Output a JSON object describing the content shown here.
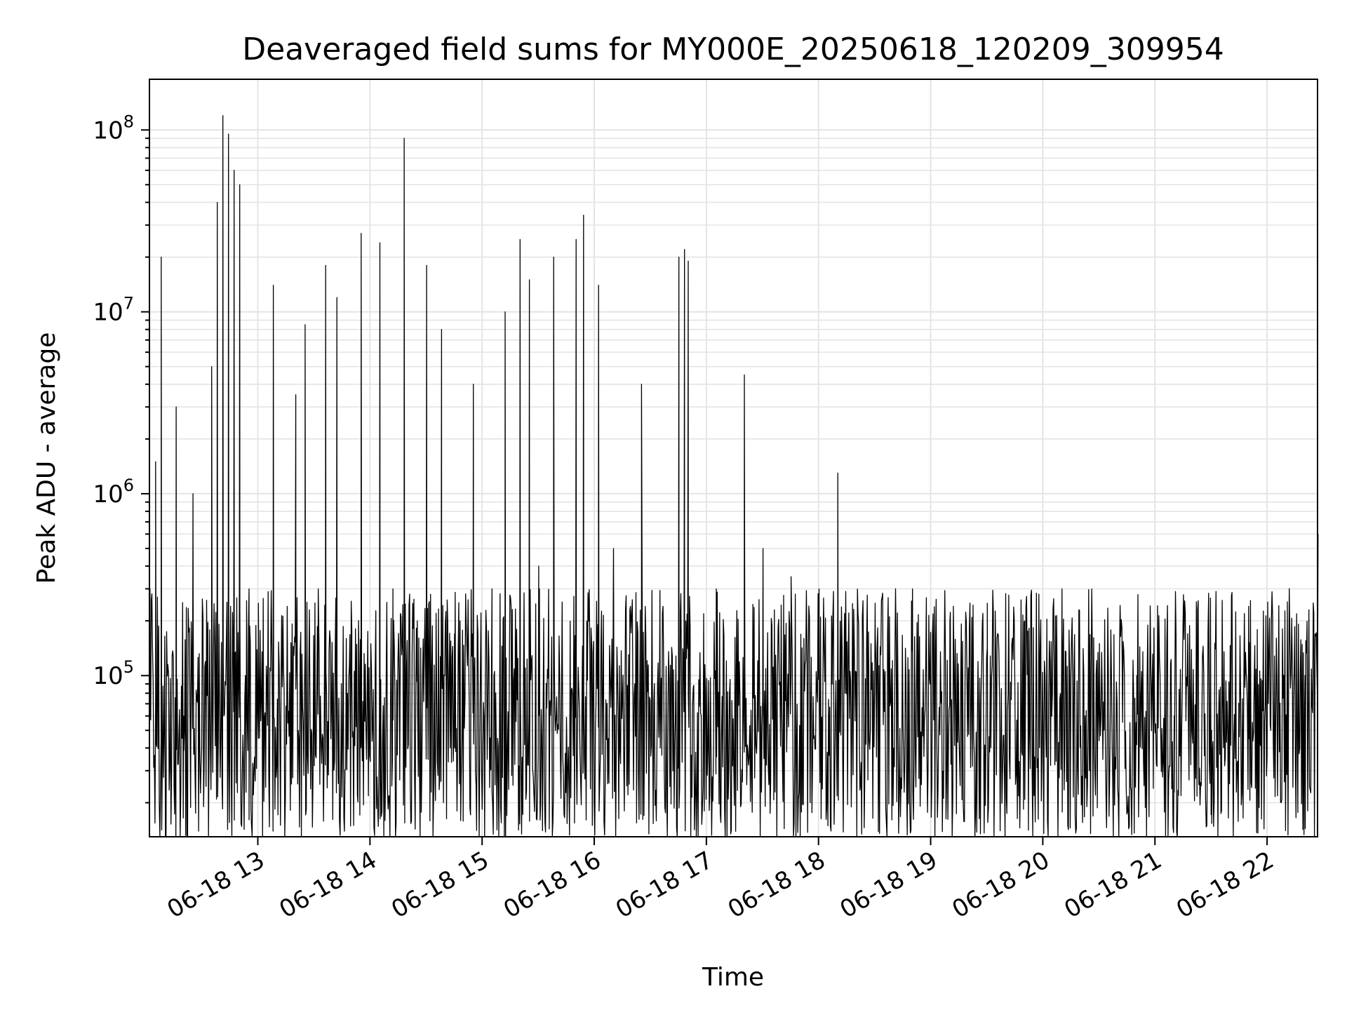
{
  "chart_data": {
    "type": "line",
    "title": "Deaveraged field sums for MY000E_20250618_120209_309954",
    "xlabel": "Time",
    "ylabel": "Peak ADU - average",
    "yscale": "log",
    "ylim": [
      13000,
      190000000
    ],
    "xlim": [
      "2025-06-18 12:02",
      "2025-06-18 22:27"
    ],
    "grid": true,
    "line_color": "#000000",
    "x_ticks": [
      {
        "value": "2025-06-18 13:00",
        "label": "06-18 13"
      },
      {
        "value": "2025-06-18 14:00",
        "label": "06-18 14"
      },
      {
        "value": "2025-06-18 15:00",
        "label": "06-18 15"
      },
      {
        "value": "2025-06-18 16:00",
        "label": "06-18 16"
      },
      {
        "value": "2025-06-18 17:00",
        "label": "06-18 17"
      },
      {
        "value": "2025-06-18 18:00",
        "label": "06-18 18"
      },
      {
        "value": "2025-06-18 19:00",
        "label": "06-18 19"
      },
      {
        "value": "2025-06-18 20:00",
        "label": "06-18 20"
      },
      {
        "value": "2025-06-18 21:00",
        "label": "06-18 21"
      },
      {
        "value": "2025-06-18 22:00",
        "label": "06-18 22"
      }
    ],
    "y_ticks": [
      {
        "value": 100000,
        "base": "10",
        "exp": "5"
      },
      {
        "value": 1000000,
        "base": "10",
        "exp": "6"
      },
      {
        "value": 10000000,
        "base": "10",
        "exp": "7"
      },
      {
        "value": 100000000,
        "base": "10",
        "exp": "8"
      }
    ],
    "series": [
      {
        "points": [
          [
            "2025-06-18 12:02",
            300000
          ],
          [
            "2025-06-18 12:05",
            1500000
          ],
          [
            "2025-06-18 12:08",
            20000000
          ],
          [
            "2025-06-18 12:12",
            90000
          ],
          [
            "2025-06-18 12:16",
            3000000
          ],
          [
            "2025-06-18 12:20",
            60000
          ],
          [
            "2025-06-18 12:25",
            1000000
          ],
          [
            "2025-06-18 12:30",
            250000
          ],
          [
            "2025-06-18 12:35",
            5000000
          ],
          [
            "2025-06-18 12:38",
            40000000
          ],
          [
            "2025-06-18 12:41",
            120000000
          ],
          [
            "2025-06-18 12:44",
            95000000
          ],
          [
            "2025-06-18 12:47",
            60000000
          ],
          [
            "2025-06-18 12:50",
            50000000
          ],
          [
            "2025-06-18 12:55",
            300000
          ],
          [
            "2025-06-18 13:00",
            250000
          ],
          [
            "2025-06-18 13:08",
            14000000
          ],
          [
            "2025-06-18 13:15",
            50000
          ],
          [
            "2025-06-18 13:20",
            3500000
          ],
          [
            "2025-06-18 13:25",
            8500000
          ],
          [
            "2025-06-18 13:32",
            300000
          ],
          [
            "2025-06-18 13:36",
            18000000
          ],
          [
            "2025-06-18 13:42",
            12000000
          ],
          [
            "2025-06-18 13:50",
            100000
          ],
          [
            "2025-06-18 13:55",
            27000000
          ],
          [
            "2025-06-18 14:05",
            24000000
          ],
          [
            "2025-06-18 14:12",
            300000
          ],
          [
            "2025-06-18 14:18",
            90000000
          ],
          [
            "2025-06-18 14:25",
            200000
          ],
          [
            "2025-06-18 14:30",
            18000000
          ],
          [
            "2025-06-18 14:38",
            8000000
          ],
          [
            "2025-06-18 14:45",
            40000
          ],
          [
            "2025-06-18 14:55",
            4000000
          ],
          [
            "2025-06-18 15:05",
            300000
          ],
          [
            "2025-06-18 15:12",
            10000000
          ],
          [
            "2025-06-18 15:20",
            25000000
          ],
          [
            "2025-06-18 15:25",
            15000000
          ],
          [
            "2025-06-18 15:30",
            400000
          ],
          [
            "2025-06-18 15:38",
            20000000
          ],
          [
            "2025-06-18 15:45",
            45000
          ],
          [
            "2025-06-18 15:50",
            25000000
          ],
          [
            "2025-06-18 15:54",
            34000000
          ],
          [
            "2025-06-18 16:02",
            14000000
          ],
          [
            "2025-06-18 16:10",
            500000
          ],
          [
            "2025-06-18 16:20",
            250000
          ],
          [
            "2025-06-18 16:25",
            4000000
          ],
          [
            "2025-06-18 16:35",
            40000
          ],
          [
            "2025-06-18 16:45",
            20000000
          ],
          [
            "2025-06-18 16:48",
            22000000
          ],
          [
            "2025-06-18 16:50",
            19000000
          ],
          [
            "2025-06-18 16:55",
            30000
          ],
          [
            "2025-06-18 17:05",
            300000
          ],
          [
            "2025-06-18 17:20",
            4500000
          ],
          [
            "2025-06-18 17:30",
            500000
          ],
          [
            "2025-06-18 17:45",
            350000
          ],
          [
            "2025-06-18 18:00",
            300000
          ],
          [
            "2025-06-18 18:10",
            1300000
          ],
          [
            "2025-06-18 18:30",
            250000
          ],
          [
            "2025-06-18 18:50",
            300000
          ],
          [
            "2025-06-18 19:10",
            200000
          ],
          [
            "2025-06-18 19:30",
            250000
          ],
          [
            "2025-06-18 19:50",
            200000
          ],
          [
            "2025-06-18 20:10",
            300000
          ],
          [
            "2025-06-18 20:30",
            150000
          ],
          [
            "2025-06-18 20:50",
            100000
          ],
          [
            "2025-06-18 21:10",
            60000
          ],
          [
            "2025-06-18 21:30",
            50000
          ],
          [
            "2025-06-18 21:50",
            45000
          ],
          [
            "2025-06-18 22:10",
            40000
          ],
          [
            "2025-06-18 22:20",
            100000
          ],
          [
            "2025-06-18 22:27",
            600000
          ]
        ]
      }
    ]
  }
}
